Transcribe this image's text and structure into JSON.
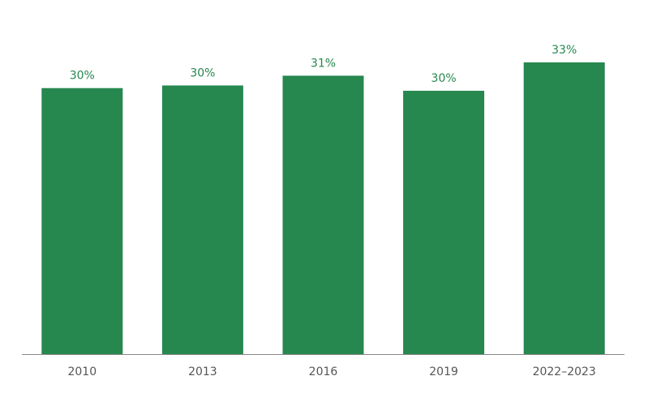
{
  "chart_data": {
    "type": "bar",
    "categories": [
      "2010",
      "2013",
      "2016",
      "2019",
      "2022–2023"
    ],
    "values": [
      30.0,
      30.3,
      31.4,
      29.7,
      32.9
    ],
    "value_labels": [
      "30%",
      "30%",
      "31%",
      "30%",
      "33%"
    ],
    "color": "#26874f"
  }
}
